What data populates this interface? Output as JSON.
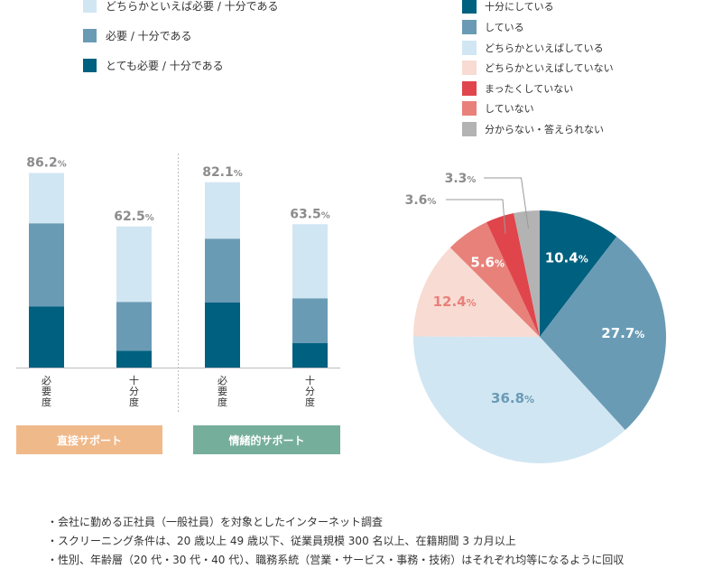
{
  "legend_left": [
    {
      "label": "どちらかといえば必要 / 十分である",
      "color": "#d1e6f3"
    },
    {
      "label": "必要 / 十分である",
      "color": "#6a9bb5"
    },
    {
      "label": "とても必要 / 十分である",
      "color": "#00607f"
    }
  ],
  "legend_right": [
    {
      "label": "十分にしている",
      "color": "#00607f"
    },
    {
      "label": "している",
      "color": "#6a9bb5"
    },
    {
      "label": "どちらかといえばしている",
      "color": "#d1e6f3"
    },
    {
      "label": "どちらかといえばしていない",
      "color": "#f8dbd2"
    },
    {
      "label": "まったくしていない",
      "color": "#e0454c"
    },
    {
      "label": "していない",
      "color": "#e8817a"
    },
    {
      "label": "分からない・答えられない",
      "color": "#b3b3b3"
    }
  ],
  "bands": [
    {
      "label": "直接サポート",
      "color": "#f0b98a"
    },
    {
      "label": "情緒的サポート",
      "color": "#76ae9c"
    }
  ],
  "notes": [
    "・会社に勤める正社員（一般社員）を対象としたインターネット調査",
    "・スクリーニング条件は、20 歳以上 49 歳以下、従業員規模 300 名以上、在籍期間 3 カ月以上",
    "・性別、年齢層（20 代・30 代・40 代）、職務系統（営業・サービス・事務・技術）はそれぞれ均等になるように回収"
  ],
  "chart_data": [
    {
      "type": "bar",
      "stacked": true,
      "categories": [
        "必要度",
        "十分度",
        "必要度",
        "十分度"
      ],
      "groups": [
        "直接サポート",
        "直接サポート",
        "情緒的サポート",
        "情緒的サポート"
      ],
      "series": [
        {
          "name": "とても必要 / 十分である",
          "color": "#00607f",
          "values": [
            27.0,
            7.5,
            28.8,
            10.8
          ]
        },
        {
          "name": "必要 / 十分である",
          "color": "#6a9bb5",
          "values": [
            36.9,
            21.6,
            28.3,
            19.9
          ]
        },
        {
          "name": "どちらかといえば必要 / 十分である",
          "color": "#d1e6f3",
          "values": [
            22.3,
            33.4,
            25.0,
            32.8
          ]
        }
      ],
      "totals": [
        "86.2",
        "62.5",
        "82.1",
        "63.5"
      ],
      "total_unit": "%",
      "ylim": [
        0,
        100
      ]
    },
    {
      "type": "pie",
      "start": "top",
      "direction": "clockwise",
      "slices": [
        {
          "label": "十分にしている",
          "value": 10.4,
          "display": "10.4",
          "color": "#00607f"
        },
        {
          "label": "している",
          "value": 27.7,
          "display": "27.7",
          "color": "#6a9bb5"
        },
        {
          "label": "どちらかといえばしている",
          "value": 36.8,
          "display": "36.8",
          "color": "#d1e6f3"
        },
        {
          "label": "どちらかといえばしていない",
          "value": 12.4,
          "display": "12.4",
          "color": "#f8dbd2"
        },
        {
          "label": "していない",
          "value": 5.6,
          "display": "5.6",
          "color": "#e8817a"
        },
        {
          "label": "まったくしていない",
          "value": 3.6,
          "display": "3.6",
          "color": "#e0454c"
        },
        {
          "label": "分からない・答えられない",
          "value": 3.3,
          "display": "3.3",
          "color": "#b3b3b3"
        }
      ],
      "unit": "%"
    }
  ]
}
